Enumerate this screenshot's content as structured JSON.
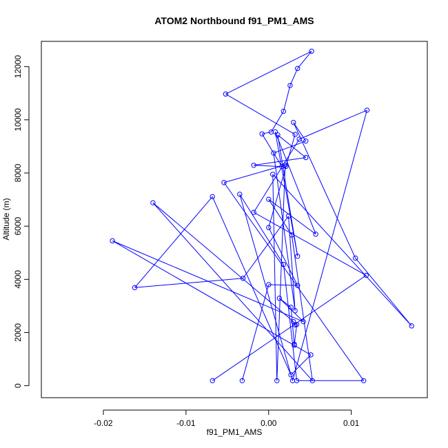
{
  "chart_data": {
    "type": "line",
    "title": "ATOM2 Northbound f91_PM1_AMS",
    "xlabel": "f91_PM1_AMS",
    "ylabel": "Altitude (m)",
    "xlim": [
      -0.0275,
      0.0192
    ],
    "ylim": [
      -450,
      12950
    ],
    "xticks": [
      -0.02,
      -0.01,
      0.0,
      0.01
    ],
    "xtick_labels": [
      "-0.02",
      "-0.01",
      "0.00",
      "0.01"
    ],
    "yticks": [
      0,
      2000,
      4000,
      6000,
      8000,
      10000,
      12000
    ],
    "ytick_labels": [
      "0",
      "2000",
      "4000",
      "6000",
      "8000",
      "10000",
      "12000"
    ],
    "grid": false,
    "series": [
      {
        "color": "#0000ff",
        "marker": "open-circle",
        "points": [
          {
            "x": -0.0068,
            "y": 190
          },
          {
            "x": 0.0118,
            "y": 4150
          },
          {
            "x": -0.0018,
            "y": 6520
          },
          {
            "x": 0.0037,
            "y": 9270
          },
          {
            "x": 0.0119,
            "y": 10360
          },
          {
            "x": 0.0029,
            "y": 190
          },
          {
            "x": -0.0035,
            "y": 7200
          },
          {
            "x": 0.0018,
            "y": 4560
          },
          {
            "x": 0.0034,
            "y": 190
          },
          {
            "x": 0.0115,
            "y": 190
          },
          {
            "x": -0.0054,
            "y": 7640
          },
          {
            "x": 0.002,
            "y": 8300
          },
          {
            "x": 0.001,
            "y": 190
          },
          {
            "x": 0.0005,
            "y": 7950
          },
          {
            "x": 0.0173,
            "y": 2250
          },
          {
            "x": 0.0105,
            "y": 4800
          },
          {
            "x": 0.003,
            "y": 9900
          },
          {
            "x": 0.0045,
            "y": 9200
          },
          {
            "x": 0.0006,
            "y": 8750
          },
          {
            "x": 0.0032,
            "y": 2820
          },
          {
            "x": 0.0024,
            "y": 6380
          },
          {
            "x": -0.0031,
            "y": 4040
          },
          {
            "x": -0.0162,
            "y": 3690
          },
          {
            "x": -0.0068,
            "y": 7110
          },
          {
            "x": 0.0027,
            "y": 410
          },
          {
            "x": 0.0051,
            "y": 1160
          },
          {
            "x": -0.0189,
            "y": 5450
          },
          {
            "x": 0.0042,
            "y": 2410
          },
          {
            "x": 0.0013,
            "y": 3290
          },
          {
            "x": 0.0027,
            "y": 2950
          },
          {
            "x": 0.0031,
            "y": 1560
          },
          {
            "x": 0.0031,
            "y": 1520
          },
          {
            "x": 0.0034,
            "y": 2300
          },
          {
            "x": 0.0032,
            "y": 2290
          },
          {
            "x": 0.003,
            "y": 2410
          },
          {
            "x": -0.014,
            "y": 6880
          },
          {
            "x": 0.0053,
            "y": 190
          },
          {
            "x": 0.0028,
            "y": 5670
          },
          {
            "x": 0.0,
            "y": 7010
          },
          {
            "x": 0.0057,
            "y": 5700
          },
          {
            "x": 0.0008,
            "y": 9550
          },
          {
            "x": 0.0035,
            "y": 4870
          },
          {
            "x": 0.0011,
            "y": 9430
          },
          {
            "x": 0.0045,
            "y": 8580
          },
          {
            "x": -0.0018,
            "y": 8290
          },
          {
            "x": 0.0016,
            "y": 8240
          },
          {
            "x": -0.0008,
            "y": 9470
          },
          {
            "x": 0.0003,
            "y": 9540
          },
          {
            "x": 0.0018,
            "y": 10320
          },
          {
            "x": 0.0026,
            "y": 11290
          },
          {
            "x": 0.0035,
            "y": 11930
          },
          {
            "x": 0.0052,
            "y": 12580
          },
          {
            "x": -0.0052,
            "y": 10970
          },
          {
            "x": 0.0032,
            "y": 9450
          },
          {
            "x": 0.0021,
            "y": 8250
          },
          {
            "x": 0.0,
            "y": 5950
          },
          {
            "x": 0.0035,
            "y": 3770
          },
          {
            "x": 0.0,
            "y": 3800
          },
          {
            "x": -0.0032,
            "y": 190
          }
        ]
      }
    ]
  }
}
